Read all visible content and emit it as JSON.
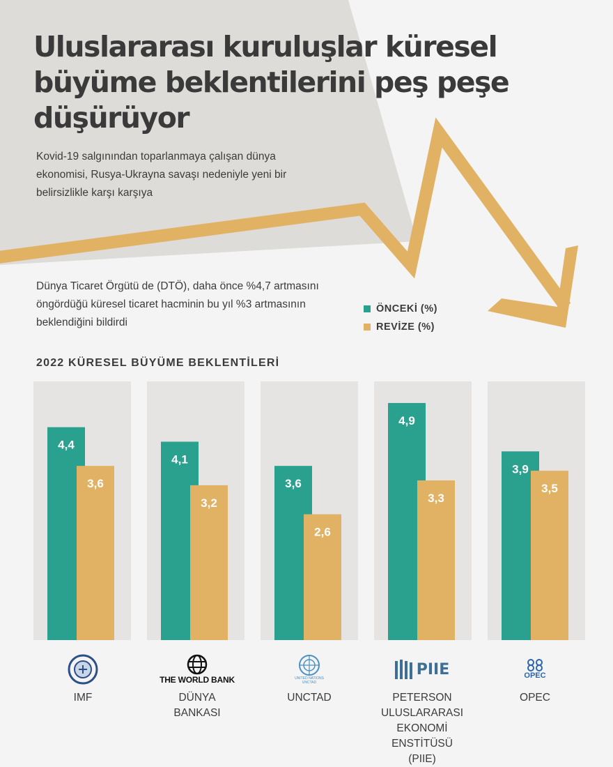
{
  "header": {
    "title": "Uluslararası kuruluşlar küresel büyüme beklentilerini peş peşe düşürüyor",
    "subtitle": "Kovid-19 salgınından toparlanmaya çalışan dünya ekonomisi, Rusya-Ukrayna savaşı nedeniyle yeni bir belirsizlikle karşı karşıya"
  },
  "note": "Dünya Ticaret Örgütü de (DTÖ), daha önce %4,7 artmasını öngördüğü küresel ticaret hacminin bu yıl %3 artmasının beklendiğini bildirdi",
  "colors": {
    "previous": "#2aa08f",
    "revised": "#e2b264",
    "panel": "#e6e4e2",
    "arrow": "#e2b264"
  },
  "chart_data": {
    "type": "bar",
    "title": "2022 KÜRESEL BÜYÜME BEKLENTİLERİ",
    "categories": [
      "IMF",
      "DÜNYA BANKASI",
      "UNCTAD",
      "PETERSON ULUSLARARASI EKONOMİ ENSTİTÜSÜ (PIIE)",
      "OPEC"
    ],
    "series": [
      {
        "name": "ÖNCEKİ (%)",
        "values": [
          4.4,
          4.1,
          3.6,
          4.9,
          3.9
        ],
        "labels": [
          "4,4",
          "4,1",
          "3,6",
          "4,9",
          "3,9"
        ]
      },
      {
        "name": "REVİZE (%)",
        "values": [
          3.6,
          3.2,
          2.6,
          3.3,
          3.5
        ],
        "labels": [
          "3,6",
          "3,2",
          "2,6",
          "3,3",
          "3,5"
        ]
      }
    ],
    "ylim": [
      0,
      5.5
    ],
    "legend": "top-right",
    "grid": false
  },
  "orgs": [
    {
      "name": "IMF",
      "logo": "imf-seal-icon"
    },
    {
      "name": "DÜNYA\nBANKASI",
      "logo": "world-bank-globe-icon",
      "logo_text": "THE WORLD BANK"
    },
    {
      "name": "UNCTAD",
      "logo": "un-emblem-icon",
      "logo_text": "UNITED NATIONS\nUNCTAD"
    },
    {
      "name": "PETERSON\nULUSLARARASI\nEKONOMİ ENSTİTÜSÜ\n(PIIE)",
      "logo": "piie-logo-icon",
      "logo_text": "PIIE"
    },
    {
      "name": "OPEC",
      "logo": "opec-logo-icon",
      "logo_text": "OPEC"
    }
  ]
}
